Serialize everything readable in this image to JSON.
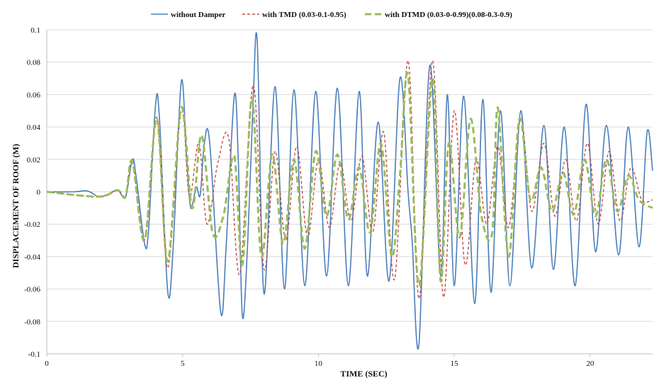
{
  "chart_data": {
    "type": "line",
    "title": "",
    "xlabel": "TIME (SEC)",
    "ylabel": "DISPLACEMENT OF ROOF (M)",
    "xlim": [
      0,
      22.3
    ],
    "ylim": [
      -0.1,
      0.1
    ],
    "x_ticks": [
      0,
      5,
      10,
      15,
      20
    ],
    "x_tick_labels": [
      "0",
      "5",
      "10",
      "15",
      "20"
    ],
    "y_ticks": [
      -0.1,
      -0.08,
      -0.06,
      -0.04,
      -0.02,
      0,
      0.02,
      0.04,
      0.06,
      0.08,
      0.1
    ],
    "y_tick_labels": [
      "-0.1",
      "-0.08",
      "-0.06",
      "-0.04",
      "-0.02",
      "0",
      "0.02",
      "0.04",
      "0.06",
      "0.08",
      "0.1"
    ],
    "grid": "horizontal",
    "legend_position": "top",
    "series": [
      {
        "name": "without Damper",
        "color": "#4a7ebb",
        "style": "solid",
        "x": [
          0,
          1.0,
          1.5,
          1.9,
          2.2,
          2.6,
          2.9,
          3.15,
          3.3,
          3.6,
          3.75,
          4.0,
          4.15,
          4.45,
          4.65,
          4.95,
          5.15,
          5.3,
          5.5,
          5.65,
          5.8,
          6.0,
          6.4,
          6.6,
          6.9,
          7.05,
          7.2,
          7.4,
          7.6,
          7.75,
          8.0,
          8.4,
          8.75,
          9.1,
          9.5,
          9.9,
          10.3,
          10.7,
          11.1,
          11.5,
          11.8,
          12.2,
          12.6,
          13.0,
          13.3,
          13.45,
          13.7,
          14.1,
          14.5,
          14.75,
          15.0,
          15.35,
          15.75,
          16.05,
          16.35,
          16.7,
          17.05,
          17.45,
          17.85,
          18.3,
          18.65,
          19.05,
          19.45,
          19.85,
          20.2,
          20.6,
          21.05,
          21.4,
          21.8,
          22.1,
          22.3
        ],
        "y": [
          0,
          0,
          0.0005,
          -0.003,
          -0.002,
          0.001,
          -0.003,
          0.02,
          0.008,
          -0.032,
          -0.023,
          0.053,
          0.045,
          -0.061,
          -0.035,
          0.068,
          0.02,
          -0.01,
          0.003,
          -0.002,
          0.03,
          0.03,
          -0.074,
          -0.035,
          0.059,
          0.02,
          -0.077,
          -0.03,
          0.058,
          0.092,
          -0.063,
          0.065,
          -0.06,
          0.063,
          -0.058,
          0.062,
          -0.052,
          0.064,
          -0.058,
          0.062,
          -0.052,
          0.043,
          -0.055,
          0.07,
          0.0,
          -0.03,
          -0.094,
          0.078,
          -0.052,
          0.06,
          -0.058,
          0.059,
          -0.069,
          0.057,
          -0.062,
          0.05,
          -0.058,
          0.05,
          -0.047,
          0.041,
          -0.048,
          0.04,
          -0.058,
          0.054,
          -0.037,
          0.041,
          -0.039,
          0.04,
          -0.034,
          0.037,
          0.013
        ]
      },
      {
        "name": "with TMD (0.03-0.1-0.95)",
        "color": "#c0504d",
        "style": "dashed",
        "x": [
          0,
          1.9,
          2.6,
          2.9,
          3.15,
          3.6,
          4.05,
          4.45,
          4.95,
          5.25,
          5.6,
          5.9,
          6.3,
          6.7,
          7.1,
          7.6,
          8.0,
          8.4,
          8.8,
          9.2,
          9.6,
          10.0,
          10.4,
          10.8,
          11.2,
          11.6,
          12.0,
          12.4,
          12.8,
          13.3,
          13.7,
          14.2,
          14.6,
          15.0,
          15.4,
          15.8,
          16.2,
          16.6,
          17.0,
          17.45,
          17.85,
          18.3,
          18.7,
          19.1,
          19.5,
          19.9,
          20.3,
          20.7,
          21.1,
          21.5,
          21.9,
          22.3
        ],
        "y": [
          0,
          -0.003,
          0.001,
          -0.003,
          0.019,
          -0.03,
          0.046,
          -0.047,
          0.05,
          -0.003,
          0.03,
          -0.02,
          0.018,
          0.033,
          -0.051,
          0.066,
          -0.048,
          0.025,
          -0.03,
          0.028,
          -0.028,
          0.02,
          -0.022,
          0.018,
          -0.018,
          0.022,
          -0.025,
          0.037,
          -0.054,
          0.081,
          -0.066,
          0.081,
          -0.065,
          0.05,
          -0.045,
          0.02,
          -0.02,
          0.028,
          -0.022,
          0.045,
          -0.012,
          0.03,
          -0.015,
          0.02,
          -0.018,
          0.03,
          -0.02,
          0.025,
          -0.018,
          0.015,
          -0.005,
          -0.005
        ]
      },
      {
        "name": "with DTMD (0.03-0-0.99)(0.08-0.3-0.9)",
        "color": "#9bbb59",
        "style": "dashed",
        "x": [
          0,
          1.9,
          2.6,
          2.9,
          3.15,
          3.6,
          4.05,
          4.45,
          4.95,
          5.35,
          5.7,
          6.1,
          6.5,
          6.9,
          7.2,
          7.55,
          7.9,
          8.3,
          8.7,
          9.1,
          9.5,
          9.9,
          10.3,
          10.7,
          11.1,
          11.5,
          11.9,
          12.3,
          12.7,
          13.0,
          13.3,
          13.7,
          14.2,
          14.5,
          14.8,
          15.2,
          15.6,
          16.0,
          16.4,
          16.6,
          17.0,
          17.4,
          17.8,
          18.2,
          18.6,
          19.0,
          19.4,
          19.8,
          20.2,
          20.6,
          21.0,
          21.4,
          21.8,
          22.3
        ],
        "y": [
          0,
          -0.003,
          0.001,
          -0.003,
          0.019,
          -0.03,
          0.045,
          -0.043,
          0.052,
          -0.01,
          0.035,
          -0.025,
          -0.015,
          0.022,
          -0.045,
          0.058,
          -0.04,
          0.023,
          -0.032,
          0.02,
          -0.035,
          0.025,
          -0.015,
          0.023,
          -0.017,
          0.015,
          -0.025,
          0.03,
          -0.04,
          0.01,
          0.072,
          -0.058,
          0.07,
          -0.055,
          0.03,
          -0.028,
          0.045,
          -0.015,
          -0.025,
          0.052,
          -0.04,
          0.045,
          -0.005,
          0.015,
          -0.012,
          0.012,
          -0.014,
          0.02,
          -0.015,
          0.02,
          -0.012,
          0.01,
          -0.005,
          -0.01
        ]
      }
    ]
  }
}
